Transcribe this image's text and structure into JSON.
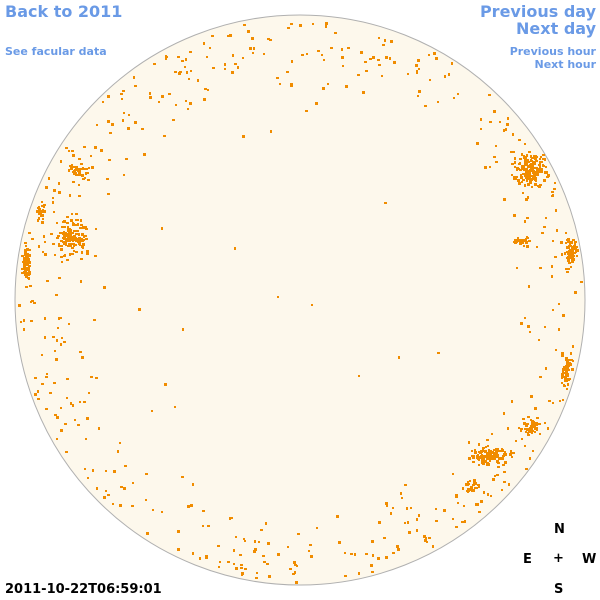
{
  "navigation": {
    "back_label": "Back to 2011",
    "facular_label": "See facular data",
    "previous_day_label": "Previous day",
    "next_day_label": "Next day",
    "previous_hour_label": "Previous hour",
    "next_hour_label": "Next hour"
  },
  "compass": {
    "north": "N",
    "east": "E",
    "center": "+",
    "west": "W",
    "south": "S"
  },
  "timestamp": "2011-10-22T06:59:01",
  "colors": {
    "disk_fill": "#fdf8ec",
    "disk_stroke": "#b0b0b0",
    "facula": "#f08c00",
    "link": "#6a9ae6"
  }
}
